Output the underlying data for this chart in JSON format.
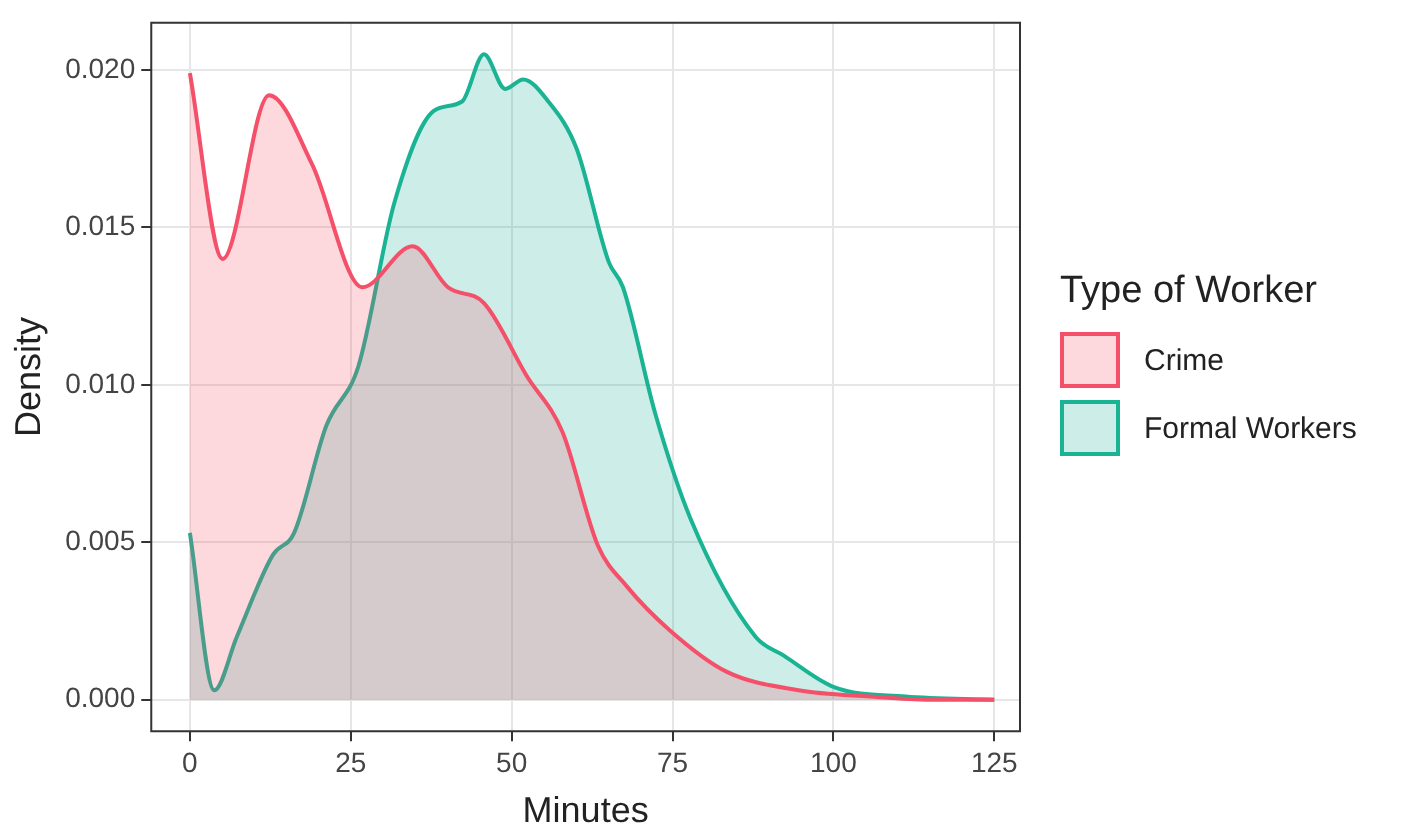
{
  "chart_data": {
    "type": "area",
    "xlabel": "Minutes",
    "ylabel": "Density",
    "legend_title": "Type of Worker",
    "legend": "right",
    "grid": true,
    "xlim": [
      -6,
      129
    ],
    "xticks": [
      0,
      25,
      50,
      75,
      100,
      125
    ],
    "ylim": [
      -0.001,
      0.0215
    ],
    "yticks": [
      {
        "value": 0,
        "label": "0.000"
      },
      {
        "value": 0.005,
        "label": "0.005"
      },
      {
        "value": 0.01,
        "label": "0.010"
      },
      {
        "value": 0.015,
        "label": "0.015"
      },
      {
        "value": 0.02,
        "label": "0.020"
      }
    ],
    "series": [
      {
        "name": "Crime",
        "color": "#f4506a",
        "x": [
          0,
          5.1,
          12.3,
          19,
          26.8,
          34.6,
          40.1,
          45.7,
          52.3,
          57.9,
          63.4,
          67.9,
          74.6,
          83.3,
          94.6,
          105.7,
          115,
          125
        ],
        "values": [
          0.0199,
          0.014,
          0.0192,
          0.017,
          0.0131,
          0.0144,
          0.0131,
          0.0126,
          0.0103,
          0.0085,
          0.0049,
          0.0036,
          0.0022,
          0.0009,
          0.0003,
          0.0001,
          0,
          0
        ]
      },
      {
        "name": "Formal Workers",
        "color": "#1ab394",
        "x": [
          0,
          3.8,
          7.3,
          12.9,
          16.2,
          21.2,
          26.2,
          31.8,
          37.9,
          42.3,
          45.7,
          49,
          51.8,
          55.7,
          60.1,
          65.1,
          67.3,
          72.3,
          77.9,
          87.9,
          92.3,
          100.1,
          111.2,
          125
        ],
        "values": [
          0.0053,
          0.0003,
          0.002,
          0.0046,
          0.0053,
          0.0087,
          0.0106,
          0.0158,
          0.0187,
          0.019,
          0.0205,
          0.0194,
          0.0197,
          0.019,
          0.0175,
          0.0139,
          0.0131,
          0.0091,
          0.0057,
          0.002,
          0.0014,
          0.0004,
          0.0001,
          0
        ]
      }
    ]
  }
}
